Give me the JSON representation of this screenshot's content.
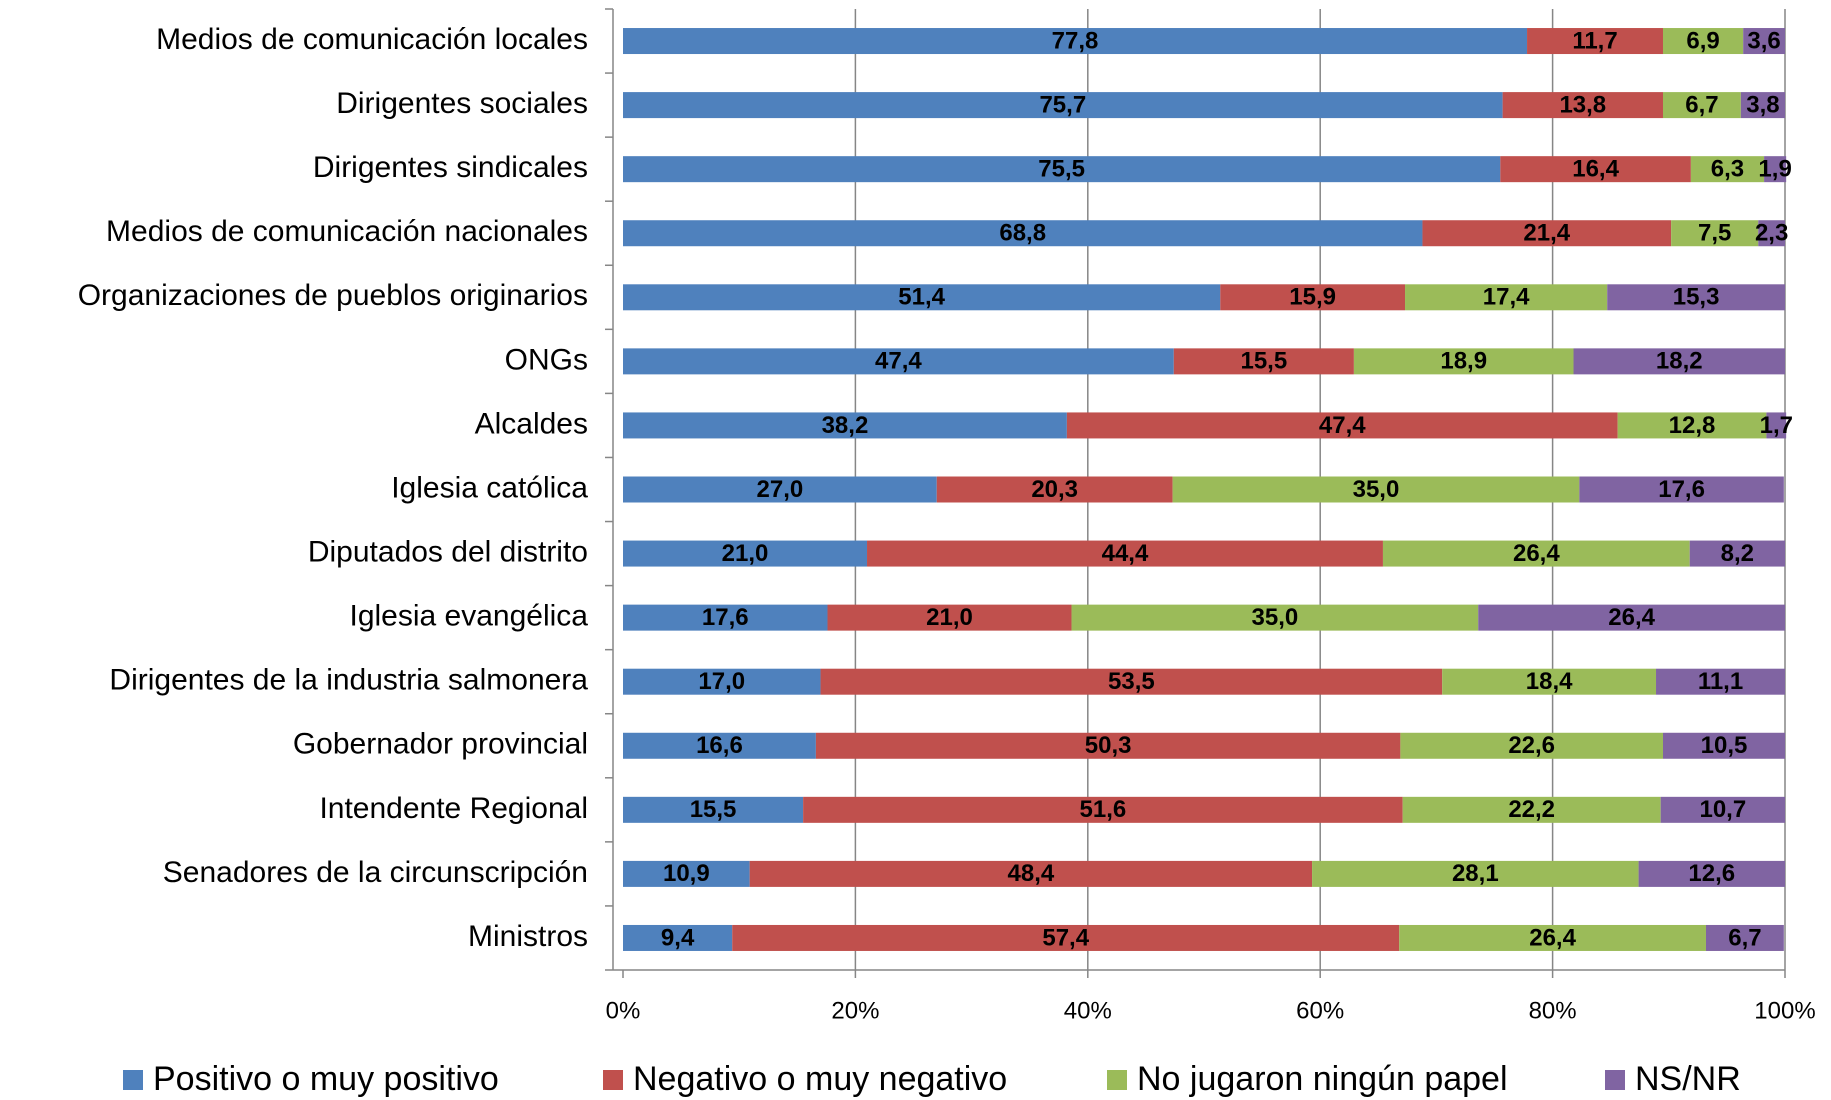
{
  "chart_data": {
    "type": "stacked_barh",
    "categories": [
      "Medios de comunicación locales",
      "Dirigentes sociales",
      "Dirigentes sindicales",
      "Medios de comunicación nacionales",
      "Organizaciones de pueblos originarios",
      "ONGs",
      "Alcaldes",
      "Iglesia católica",
      "Diputados del distrito",
      "Iglesia evangélica",
      "Dirigentes de la industria salmonera",
      "Gobernador provincial",
      "Intendente Regional",
      "Senadores de la circunscripción",
      "Ministros"
    ],
    "series": [
      {
        "name": "Positivo o muy positivo",
        "color": "#4f81bd",
        "values": [
          77.8,
          75.7,
          75.5,
          68.8,
          51.4,
          47.4,
          38.2,
          27.0,
          21.0,
          17.6,
          17.0,
          16.6,
          15.5,
          10.9,
          9.4
        ],
        "value_labels": [
          "77,8",
          "75,7",
          "75,5",
          "68,8",
          "51,4",
          "47,4",
          "38,2",
          "27,0",
          "21,0",
          "17,6",
          "17,0",
          "16,6",
          "15,5",
          "10,9",
          "9,4"
        ]
      },
      {
        "name": "Negativo o muy negativo",
        "color": "#c0504d",
        "values": [
          11.7,
          13.8,
          16.4,
          21.4,
          15.9,
          15.5,
          47.4,
          20.3,
          44.4,
          21.0,
          53.5,
          50.3,
          51.6,
          48.4,
          57.4
        ],
        "value_labels": [
          "11,7",
          "13,8",
          "16,4",
          "21,4",
          "15,9",
          "15,5",
          "47,4",
          "20,3",
          "44,4",
          "21,0",
          "53,5",
          "50,3",
          "51,6",
          "48,4",
          "57,4"
        ]
      },
      {
        "name": "No jugaron ningún papel",
        "color": "#9bbb59",
        "values": [
          6.9,
          6.7,
          6.3,
          7.5,
          17.4,
          18.9,
          12.8,
          35.0,
          26.4,
          35.0,
          18.4,
          22.6,
          22.2,
          28.1,
          26.4
        ],
        "value_labels": [
          "6,9",
          "6,7",
          "6,3",
          "7,5",
          "17,4",
          "18,9",
          "12,8",
          "35,0",
          "26,4",
          "35,0",
          "18,4",
          "22,6",
          "22,2",
          "28,1",
          "26,4"
        ]
      },
      {
        "name": "NS/NR",
        "color": "#8064a2",
        "values": [
          3.6,
          3.8,
          1.9,
          2.3,
          15.3,
          18.2,
          1.7,
          17.6,
          8.2,
          26.4,
          11.1,
          10.5,
          10.7,
          12.6,
          6.7
        ],
        "value_labels": [
          "3,6",
          "3,8",
          "1,9",
          "2,3",
          "15,3",
          "18,2",
          "1,7",
          "17,6",
          "8,2",
          "26,4",
          "11,1",
          "10,5",
          "10,7",
          "12,6",
          "6,7"
        ]
      }
    ],
    "xlim": [
      0,
      100
    ],
    "xticks": [
      {
        "value": 0,
        "label": "0%"
      },
      {
        "value": 20,
        "label": "20%"
      },
      {
        "value": 40,
        "label": "40%"
      },
      {
        "value": 60,
        "label": "60%"
      },
      {
        "value": 80,
        "label": "80%"
      },
      {
        "value": 100,
        "label": "100%"
      }
    ],
    "grid": true,
    "legend": "bottom"
  }
}
